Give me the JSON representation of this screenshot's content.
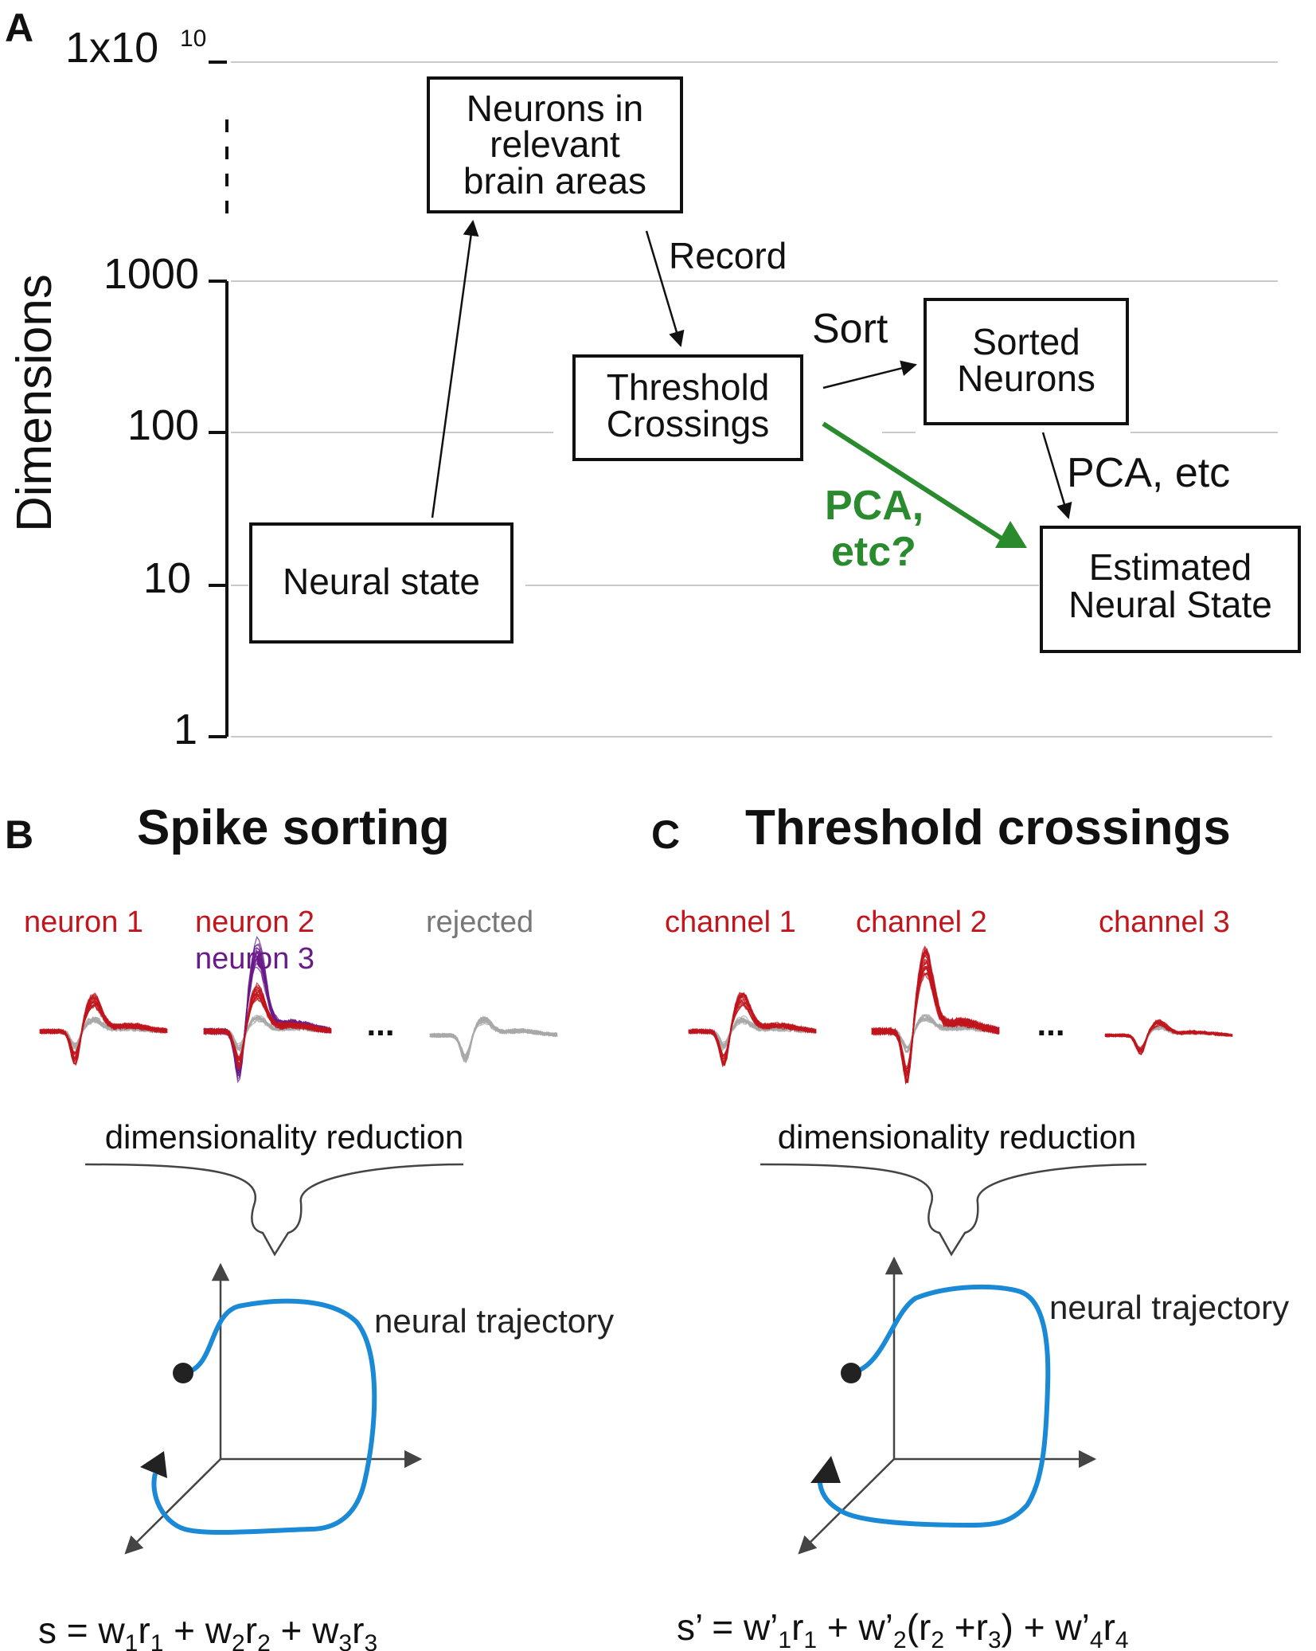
{
  "panels": {
    "a": {
      "letter": "A",
      "y_axis_label": "Dimensions",
      "ticks": [
        "1x10",
        "1000",
        "100",
        "10",
        "1"
      ],
      "tick_exponent": "10",
      "boxes": {
        "neurons_in_areas": [
          "Neurons in",
          "relevant",
          "brain areas"
        ],
        "neural_state": [
          "Neural state"
        ],
        "threshold_crossings": [
          "Threshold",
          "Crossings"
        ],
        "sorted_neurons": [
          "Sorted",
          "Neurons"
        ],
        "estimated_state": [
          "Estimated",
          "Neural State"
        ]
      },
      "edge_labels": {
        "record": "Record",
        "sort": "Sort",
        "pca": "PCA, etc",
        "pca_question": [
          "PCA,",
          "etc?"
        ]
      },
      "colors": {
        "highlight_green": "#2a8a2e"
      }
    },
    "b": {
      "letter": "B",
      "title": "Spike sorting",
      "units": [
        {
          "label": "neuron 1",
          "color": "#c0161e"
        },
        {
          "label": "neuron 2",
          "color": "#c0161e"
        },
        {
          "label": "neuron 3",
          "color": "#6a1b8a"
        },
        {
          "label": "rejected",
          "color": "#777777"
        }
      ],
      "ellipsis": "...",
      "reduction_label": "dimensionality reduction",
      "trajectory_label": "neural trajectory",
      "equation": {
        "lhs": "s",
        "terms": [
          {
            "w": "w",
            "w_sub": "1",
            "r": "r",
            "r_sub": "1"
          },
          {
            "w": "w",
            "w_sub": "2",
            "r": "r",
            "r_sub": "2"
          },
          {
            "w": "w",
            "w_sub": "3",
            "r": "r",
            "r_sub": "3"
          }
        ]
      }
    },
    "c": {
      "letter": "C",
      "title": "Threshold crossings",
      "channels": [
        {
          "label": "channel 1",
          "color": "#c0161e"
        },
        {
          "label": "channel 2",
          "color": "#c0161e"
        },
        {
          "label": "channel 3",
          "color": "#c0161e"
        }
      ],
      "ellipsis": "...",
      "reduction_label": "dimensionality reduction",
      "trajectory_label": "neural trajectory",
      "equation": {
        "lhs": "s’",
        "terms": [
          {
            "w": "w’",
            "w_sub": "1",
            "r": "r",
            "r_sub": "1"
          },
          {
            "w": "w’",
            "w_sub": "2",
            "r": "(r",
            "r_sub": "2",
            "r2": " +r",
            "r2_sub": "3",
            "close": ")"
          },
          {
            "w": "w’",
            "w_sub": "4",
            "r": "r",
            "r_sub": "4"
          }
        ]
      }
    }
  },
  "colors": {
    "trajectory_blue": "#1b8ad6",
    "spike_red": "#c0161e",
    "spike_purple": "#6a1b8a",
    "spike_gray": "#a8a8a8"
  }
}
